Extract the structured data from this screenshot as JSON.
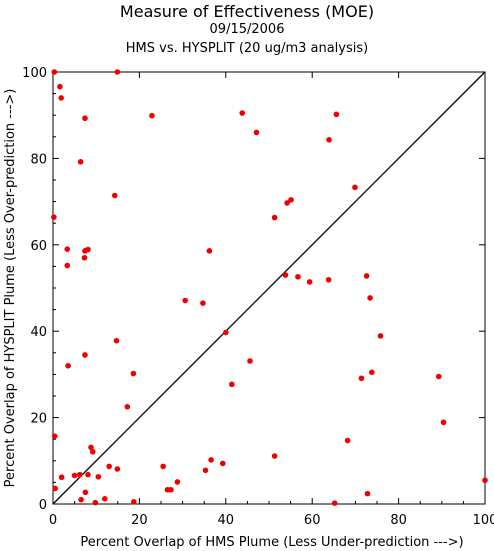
{
  "chart_data": {
    "type": "scatter",
    "title": "Measure of Effectiveness (MOE)",
    "subtitle": "09/15/2006",
    "subtitle2": "HMS vs. HYSPLIT  (20 ug/m3 analysis)",
    "xlabel": "Percent Overlap of HMS Plume (Less Under-prediction --->)",
    "ylabel": "Percent Overlap of HYSPLIT Plume (Less Over-prediction --->)",
    "xlim": [
      0,
      100
    ],
    "ylim": [
      0,
      100
    ],
    "xticks": [
      0,
      20,
      40,
      60,
      80,
      100
    ],
    "yticks": [
      0,
      20,
      40,
      60,
      80,
      100
    ],
    "grid": false,
    "reference_line": "diagonal y = x",
    "point_color": "#ee0000",
    "line_color": "#000000",
    "points": [
      [
        0.3,
        100
      ],
      [
        1.6,
        96.6
      ],
      [
        1.9,
        94
      ],
      [
        6.4,
        79.2
      ],
      [
        7.4,
        89.3
      ],
      [
        14.9,
        100
      ],
      [
        22.9,
        89.9
      ],
      [
        0.2,
        66.4
      ],
      [
        3.3,
        59
      ],
      [
        7.4,
        58.6
      ],
      [
        8.1,
        58.9
      ],
      [
        3.3,
        55.2
      ],
      [
        7.3,
        57
      ],
      [
        14.3,
        71.4
      ],
      [
        36.2,
        58.6
      ],
      [
        43.8,
        90.5
      ],
      [
        47.1,
        86
      ],
      [
        63.9,
        84.3
      ],
      [
        65.6,
        90.2
      ],
      [
        69.9,
        73.3
      ],
      [
        51.3,
        66.3
      ],
      [
        54.2,
        69.7
      ],
      [
        55.1,
        70.4
      ],
      [
        53.8,
        53
      ],
      [
        56.7,
        52.6
      ],
      [
        59.4,
        51.4
      ],
      [
        63.8,
        51.9
      ],
      [
        72.6,
        52.8
      ],
      [
        73.4,
        47.7
      ],
      [
        75.8,
        38.9
      ],
      [
        30.6,
        47.1
      ],
      [
        34.7,
        46.5
      ],
      [
        40.0,
        39.7
      ],
      [
        14.7,
        37.8
      ],
      [
        7.4,
        34.5
      ],
      [
        3.5,
        32
      ],
      [
        18.6,
        30.2
      ],
      [
        45.6,
        33.1
      ],
      [
        41.4,
        27.7
      ],
      [
        71.4,
        29.1
      ],
      [
        73.8,
        30.5
      ],
      [
        89.3,
        29.5
      ],
      [
        90.4,
        18.9
      ],
      [
        17.2,
        22.5
      ],
      [
        68.2,
        14.7
      ],
      [
        0.4,
        15.7
      ],
      [
        8.8,
        13.1
      ],
      [
        9.2,
        12.1
      ],
      [
        51.3,
        11.1
      ],
      [
        36.6,
        10.2
      ],
      [
        39.3,
        9.4
      ],
      [
        25.5,
        8.7
      ],
      [
        35.3,
        7.8
      ],
      [
        13.0,
        8.7
      ],
      [
        14.9,
        8.1
      ],
      [
        2.0,
        6.2
      ],
      [
        5.0,
        6.6
      ],
      [
        6.2,
        6.8
      ],
      [
        8.1,
        6.8
      ],
      [
        10.5,
        6.3
      ],
      [
        28.8,
        5.1
      ],
      [
        26.5,
        3.3
      ],
      [
        27.3,
        3.3
      ],
      [
        0.5,
        3.6
      ],
      [
        7.5,
        2.7
      ],
      [
        72.8,
        2.4
      ],
      [
        100,
        5.5
      ],
      [
        6.5,
        1.0
      ],
      [
        12.0,
        1.2
      ],
      [
        18.7,
        0.5
      ],
      [
        9.8,
        0.3
      ],
      [
        65.2,
        0.2
      ]
    ]
  }
}
